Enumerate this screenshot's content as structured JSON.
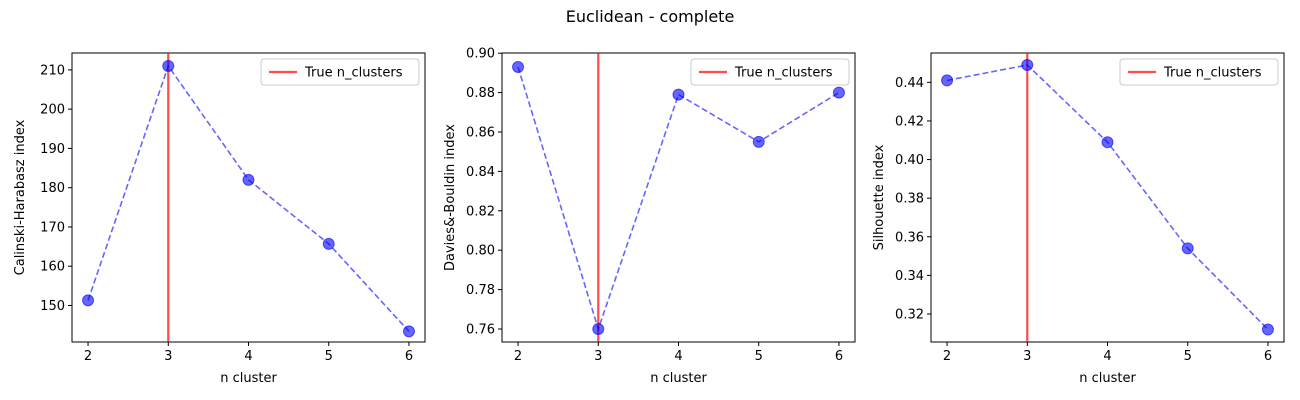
{
  "figure": {
    "suptitle": "Euclidean - complete"
  },
  "chart_data": [
    {
      "type": "line",
      "xlabel": "n cluster",
      "ylabel": "Calinski-Harabasz index",
      "x": [
        2,
        3,
        4,
        5,
        6
      ],
      "xticks": [
        2,
        3,
        4,
        5,
        6
      ],
      "xlim": [
        1.8,
        6.2
      ],
      "ylim": [
        140.7,
        214.3
      ],
      "yticks": [
        150,
        160,
        170,
        180,
        190,
        200,
        210
      ],
      "series": [
        {
          "values": [
            151.3,
            211.0,
            182.0,
            165.7,
            143.4
          ],
          "color": "#0000ff",
          "style": "dashed-with-markers"
        }
      ],
      "vline": {
        "x": 3,
        "label": "True n_clusters",
        "color": "#ff0000"
      },
      "legend": {
        "position": "top-right",
        "entries": [
          "True n_clusters"
        ]
      },
      "grid": false
    },
    {
      "type": "line",
      "xlabel": "n cluster",
      "ylabel": "Davies&-Bouldin index",
      "x": [
        2,
        3,
        4,
        5,
        6
      ],
      "xticks": [
        2,
        3,
        4,
        5,
        6
      ],
      "xlim": [
        1.8,
        6.2
      ],
      "ylim": [
        0.7534,
        0.9001
      ],
      "yticks": [
        0.76,
        0.78,
        0.8,
        0.82,
        0.84,
        0.86,
        0.88,
        0.9
      ],
      "series": [
        {
          "values": [
            0.893,
            0.76,
            0.879,
            0.855,
            0.88
          ],
          "color": "#0000ff",
          "style": "dashed-with-markers"
        }
      ],
      "vline": {
        "x": 3,
        "label": "True n_clusters",
        "color": "#ff0000"
      },
      "legend": {
        "position": "top-right",
        "entries": [
          "True n_clusters"
        ]
      },
      "grid": false
    },
    {
      "type": "line",
      "xlabel": "n cluster",
      "ylabel": "Silhouette index",
      "x": [
        2,
        3,
        4,
        5,
        6
      ],
      "xticks": [
        2,
        3,
        4,
        5,
        6
      ],
      "xlim": [
        1.8,
        6.2
      ],
      "ylim": [
        0.3055,
        0.4552
      ],
      "yticks": [
        0.32,
        0.34,
        0.36,
        0.38,
        0.4,
        0.42,
        0.44
      ],
      "series": [
        {
          "values": [
            0.441,
            0.449,
            0.409,
            0.354,
            0.312
          ],
          "color": "#0000ff",
          "style": "dashed-with-markers"
        }
      ],
      "vline": {
        "x": 3,
        "label": "True n_clusters",
        "color": "#ff0000"
      },
      "legend": {
        "position": "top-right",
        "entries": [
          "True n_clusters"
        ]
      },
      "grid": false
    }
  ]
}
